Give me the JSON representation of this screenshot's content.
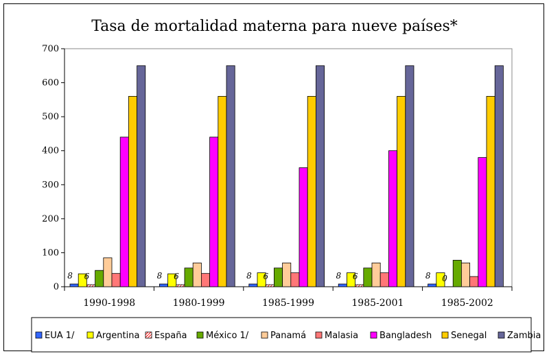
{
  "chart_data": {
    "type": "bar",
    "title": "Tasa de mortalidad materna para nueve países*",
    "categories": [
      "1990-1998",
      "1980-1999",
      "1985-1999",
      "1985-2001",
      "1985-2002"
    ],
    "ylim": [
      0,
      700
    ],
    "yticks": [
      0,
      100,
      200,
      300,
      400,
      500,
      600,
      700
    ],
    "grid": false,
    "legend_position": "bottom",
    "series": [
      {
        "name": "EUA 1/",
        "color": "#3366ff",
        "values": [
          8,
          8,
          8,
          8,
          8
        ]
      },
      {
        "name": "Argentina",
        "color": "#ffff00",
        "values": [
          38,
          38,
          41,
          41,
          41
        ]
      },
      {
        "name": "España",
        "color": "#ffffff",
        "hatch": "#ff0000",
        "values": [
          6,
          6,
          6,
          6,
          0
        ]
      },
      {
        "name": "México 1/",
        "color": "#66aa00",
        "values": [
          48,
          55,
          55,
          55,
          78
        ]
      },
      {
        "name": "Panamá",
        "color": "#ffcc99",
        "values": [
          85,
          70,
          70,
          70,
          70
        ]
      },
      {
        "name": "Malasia",
        "color": "#ff7777",
        "values": [
          39,
          39,
          41,
          41,
          30
        ]
      },
      {
        "name": "Bangladesh",
        "color": "#ff00ff",
        "values": [
          440,
          440,
          350,
          400,
          380
        ]
      },
      {
        "name": "Senegal",
        "color": "#ffcc00",
        "values": [
          560,
          560,
          560,
          560,
          560
        ]
      },
      {
        "name": "Zambia",
        "color": "#666699",
        "values": [
          650,
          650,
          650,
          650,
          650
        ]
      }
    ],
    "data_labels": {
      "EUA 1/": [
        "8",
        "8",
        "8",
        "8",
        "8"
      ],
      "España": [
        "6",
        "6",
        "6",
        "6",
        "0"
      ]
    }
  }
}
